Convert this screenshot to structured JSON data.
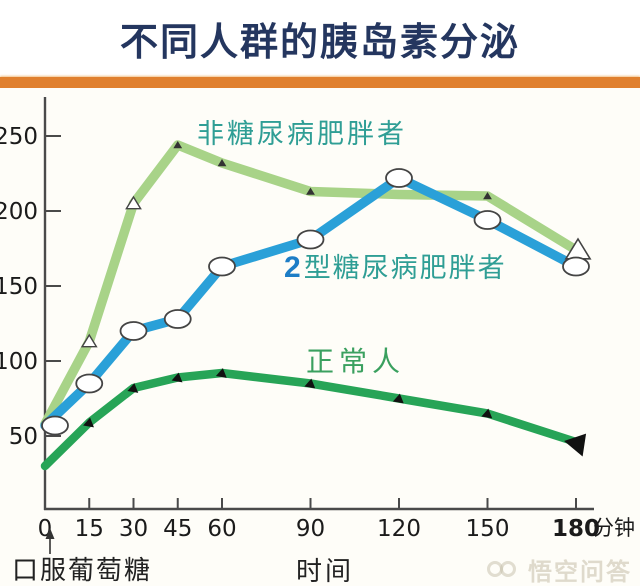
{
  "header": {
    "title": "不同人群的胰岛素分泌"
  },
  "page": {
    "watermark": "悟空问答"
  },
  "colors": {
    "title": "#24365f",
    "divider_orange": "#e0802f",
    "left_strip_red": "#d64638",
    "axis": "#4a4a4a",
    "tick_text": "#1b1b1b",
    "nondiabetic_line": "#a8d388",
    "t2dm_line": "#2aa0d8",
    "normal_line": "#27a457",
    "teal_label": "#2f9e95",
    "blue_label": "#1d7dc6",
    "green_label": "#3aa05f"
  },
  "annotations": {
    "nondiabetic": {
      "text": "非糖尿病肥胖者"
    },
    "t2dm": {
      "prefix": "2",
      "rest": "型糖尿病肥胖者"
    },
    "normal": {
      "text": "正常人"
    }
  },
  "chart_data": {
    "type": "line",
    "title": "不同人群的胰岛素分泌",
    "x": [
      0,
      15,
      30,
      45,
      60,
      90,
      120,
      150,
      180
    ],
    "x_unit": "分钟",
    "xlabel": "时间",
    "x_origin_note": "口服葡萄糖",
    "yticks": [
      50,
      100,
      150,
      200,
      250
    ],
    "ylim": [
      0,
      270
    ],
    "xtick_bold": [
      180
    ],
    "grid": false,
    "legend_position": "inline-annotations",
    "series": [
      {
        "name": "非糖尿病肥胖者",
        "color": "#a8d388",
        "marker": "open-triangle",
        "values": [
          58,
          113,
          205,
          244,
          232,
          213,
          211,
          210,
          174
        ]
      },
      {
        "name": "2型糖尿病肥胖者",
        "color": "#2aa0d8",
        "marker": "open-ellipse",
        "values": [
          57,
          85,
          120,
          128,
          163,
          181,
          222,
          194,
          163
        ]
      },
      {
        "name": "正常人",
        "color": "#27a457",
        "marker": "filled-triangle",
        "values": [
          30,
          59,
          82,
          89,
          92,
          85,
          75,
          65,
          46
        ]
      }
    ]
  }
}
